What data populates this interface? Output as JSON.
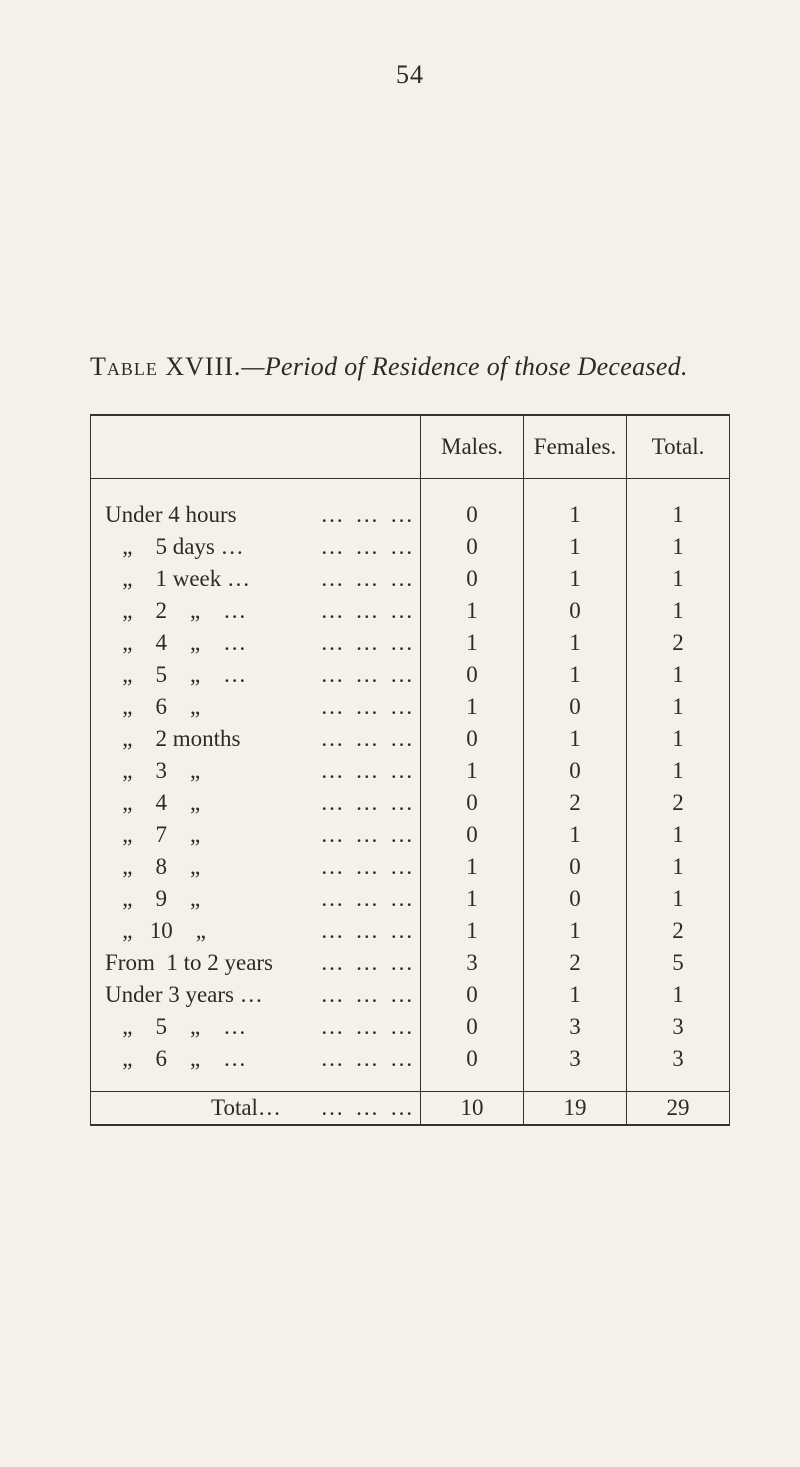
{
  "page_number": "54",
  "caption_prefix": "Table XVIII.",
  "caption_rest": "—Period of Residence of those Deceased.",
  "columns": {
    "label": "",
    "males": "Males.",
    "females": "Females.",
    "total": "Total."
  },
  "rows": [
    {
      "label": "Under 4 hours",
      "dots": "…    …    …",
      "males": "0",
      "females": "1",
      "total": "1"
    },
    {
      "label": "   „    5 days …",
      "dots": "…    …    …",
      "males": "0",
      "females": "1",
      "total": "1"
    },
    {
      "label": "   „    1 week …",
      "dots": "…    …    …",
      "males": "0",
      "females": "1",
      "total": "1"
    },
    {
      "label": "   „    2    „    …",
      "dots": "…    …    …",
      "males": "1",
      "females": "0",
      "total": "1"
    },
    {
      "label": "   „    4    „    …",
      "dots": "…    …    …",
      "males": "1",
      "females": "1",
      "total": "2"
    },
    {
      "label": "   „    5    „    …",
      "dots": "…    …    …",
      "males": "0",
      "females": "1",
      "total": "1"
    },
    {
      "label": "   „    6    „",
      "dots": "…    …    …",
      "males": "1",
      "females": "0",
      "total": "1"
    },
    {
      "label": "   „    2 months",
      "dots": "…    …    …",
      "males": "0",
      "females": "1",
      "total": "1"
    },
    {
      "label": "   „    3    „",
      "dots": "…    …    …",
      "males": "1",
      "females": "0",
      "total": "1"
    },
    {
      "label": "   „    4    „",
      "dots": "…    …    …",
      "males": "0",
      "females": "2",
      "total": "2"
    },
    {
      "label": "   „    7    „",
      "dots": "…    …    …",
      "males": "0",
      "females": "1",
      "total": "1"
    },
    {
      "label": "   „    8    „",
      "dots": "…    …    …",
      "males": "1",
      "females": "0",
      "total": "1"
    },
    {
      "label": "   „    9    „",
      "dots": "…    …    …",
      "males": "1",
      "females": "0",
      "total": "1"
    },
    {
      "label": "   „   10    „",
      "dots": "…    …    …",
      "males": "1",
      "females": "1",
      "total": "2"
    },
    {
      "label": "From  1 to 2 years",
      "dots": "…    …    …",
      "males": "3",
      "females": "2",
      "total": "5"
    },
    {
      "label": "Under 3 years …",
      "dots": "…    …    …",
      "males": "0",
      "females": "1",
      "total": "1"
    },
    {
      "label": "   „    5    „    …",
      "dots": "…    …    …",
      "males": "0",
      "females": "3",
      "total": "3"
    },
    {
      "label": "   „    6    „    …",
      "dots": "…    …    …",
      "males": "0",
      "females": "3",
      "total": "3"
    }
  ],
  "total_row": {
    "label": "Total…",
    "dots": "…    …    …",
    "males": "10",
    "females": "19",
    "total": "29"
  }
}
